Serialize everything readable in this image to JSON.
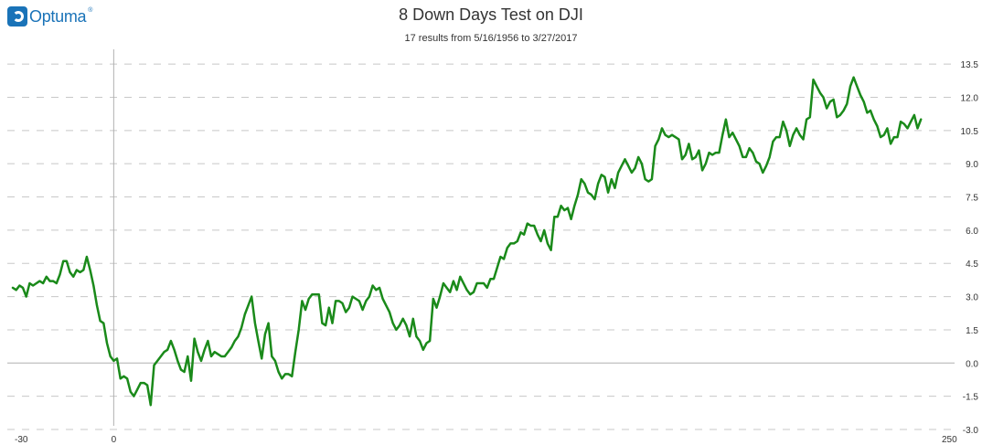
{
  "header": {
    "logo_text": "Optuma",
    "logo_mark": "®"
  },
  "chart_data": {
    "type": "line",
    "title": "8 Down Days Test on DJI",
    "subtitle": "17 results from 5/16/1956 to 3/27/2017",
    "xlabel": "",
    "ylabel": "",
    "xlim": [
      -30,
      250
    ],
    "ylim": [
      -3.0,
      14.0
    ],
    "x_ticks": [
      -30,
      0,
      250
    ],
    "y_ticks": [
      "13.5",
      "12.0",
      "10.5",
      "9.0",
      "7.5",
      "6.0",
      "4.5",
      "3.0",
      "1.5",
      "0.0",
      "-1.5",
      "-3.0"
    ],
    "grid": true,
    "legend": "none",
    "series": [
      {
        "color": "#1a8a1a",
        "points": [
          [
            -30,
            3.4
          ],
          [
            -29,
            3.3
          ],
          [
            -28,
            3.5
          ],
          [
            -27,
            3.4
          ],
          [
            -26,
            3.0
          ],
          [
            -25,
            3.6
          ],
          [
            -24,
            3.5
          ],
          [
            -23,
            3.6
          ],
          [
            -22,
            3.7
          ],
          [
            -21,
            3.6
          ],
          [
            -20,
            3.9
          ],
          [
            -19,
            3.7
          ],
          [
            -18,
            3.7
          ],
          [
            -17,
            3.6
          ],
          [
            -16,
            4.0
          ],
          [
            -15,
            4.6
          ],
          [
            -14,
            4.6
          ],
          [
            -13,
            4.1
          ],
          [
            -12,
            3.9
          ],
          [
            -11,
            4.2
          ],
          [
            -10,
            4.1
          ],
          [
            -9,
            4.2
          ],
          [
            -8,
            4.8
          ],
          [
            -7,
            4.2
          ],
          [
            -6,
            3.5
          ],
          [
            -5,
            2.6
          ],
          [
            -4,
            1.9
          ],
          [
            -3,
            1.8
          ],
          [
            -2,
            0.9
          ],
          [
            -1,
            0.3
          ],
          [
            0,
            0.1
          ],
          [
            1,
            0.2
          ],
          [
            2,
            -0.7
          ],
          [
            3,
            -0.6
          ],
          [
            4,
            -0.7
          ],
          [
            5,
            -1.3
          ],
          [
            6,
            -1.5
          ],
          [
            7,
            -1.2
          ],
          [
            8,
            -0.9
          ],
          [
            9,
            -0.9
          ],
          [
            10,
            -1.0
          ],
          [
            11,
            -1.9
          ],
          [
            12,
            -0.1
          ],
          [
            13,
            0.1
          ],
          [
            14,
            0.3
          ],
          [
            15,
            0.5
          ],
          [
            16,
            0.6
          ],
          [
            17,
            1.0
          ],
          [
            18,
            0.6
          ],
          [
            19,
            0.1
          ],
          [
            20,
            -0.3
          ],
          [
            21,
            -0.4
          ],
          [
            22,
            0.3
          ],
          [
            23,
            -0.8
          ],
          [
            24,
            1.1
          ],
          [
            25,
            0.5
          ],
          [
            26,
            0.1
          ],
          [
            27,
            0.6
          ],
          [
            28,
            1.0
          ],
          [
            29,
            0.3
          ],
          [
            30,
            0.5
          ],
          [
            31,
            0.4
          ],
          [
            32,
            0.3
          ],
          [
            33,
            0.3
          ],
          [
            34,
            0.5
          ],
          [
            35,
            0.7
          ],
          [
            36,
            1.0
          ],
          [
            37,
            1.2
          ],
          [
            38,
            1.6
          ],
          [
            39,
            2.2
          ],
          [
            40,
            2.6
          ],
          [
            41,
            3.0
          ],
          [
            42,
            1.8
          ],
          [
            43,
            1.0
          ],
          [
            44,
            0.2
          ],
          [
            45,
            1.3
          ],
          [
            46,
            1.8
          ],
          [
            47,
            0.3
          ],
          [
            48,
            0.1
          ],
          [
            49,
            -0.4
          ],
          [
            50,
            -0.7
          ],
          [
            51,
            -0.5
          ],
          [
            52,
            -0.5
          ],
          [
            53,
            -0.6
          ],
          [
            54,
            0.5
          ],
          [
            55,
            1.5
          ],
          [
            56,
            2.8
          ],
          [
            57,
            2.4
          ],
          [
            58,
            2.9
          ],
          [
            59,
            3.1
          ],
          [
            60,
            3.1
          ],
          [
            61,
            3.1
          ],
          [
            62,
            1.8
          ],
          [
            63,
            1.7
          ],
          [
            64,
            2.5
          ],
          [
            65,
            1.8
          ],
          [
            66,
            2.8
          ],
          [
            67,
            2.8
          ],
          [
            68,
            2.7
          ],
          [
            69,
            2.3
          ],
          [
            70,
            2.5
          ],
          [
            71,
            3.0
          ],
          [
            72,
            2.9
          ],
          [
            73,
            2.8
          ],
          [
            74,
            2.4
          ],
          [
            75,
            2.8
          ],
          [
            76,
            3.0
          ],
          [
            77,
            3.5
          ],
          [
            78,
            3.3
          ],
          [
            79,
            3.4
          ],
          [
            80,
            2.9
          ],
          [
            81,
            2.6
          ],
          [
            82,
            2.3
          ],
          [
            83,
            1.8
          ],
          [
            84,
            1.5
          ],
          [
            85,
            1.7
          ],
          [
            86,
            2.0
          ],
          [
            87,
            1.7
          ],
          [
            88,
            1.2
          ],
          [
            89,
            2.0
          ],
          [
            90,
            1.2
          ],
          [
            91,
            1.0
          ],
          [
            92,
            0.6
          ],
          [
            93,
            0.9
          ],
          [
            94,
            1.0
          ],
          [
            95,
            2.9
          ],
          [
            96,
            2.5
          ],
          [
            97,
            3.0
          ],
          [
            98,
            3.6
          ],
          [
            99,
            3.4
          ],
          [
            100,
            3.2
          ],
          [
            101,
            3.7
          ],
          [
            102,
            3.3
          ],
          [
            103,
            3.9
          ],
          [
            104,
            3.6
          ],
          [
            105,
            3.3
          ],
          [
            106,
            3.1
          ],
          [
            107,
            3.2
          ],
          [
            108,
            3.6
          ],
          [
            109,
            3.6
          ],
          [
            110,
            3.6
          ],
          [
            111,
            3.4
          ],
          [
            112,
            3.8
          ],
          [
            113,
            3.8
          ],
          [
            114,
            4.3
          ],
          [
            115,
            4.8
          ],
          [
            116,
            4.7
          ],
          [
            117,
            5.2
          ],
          [
            118,
            5.4
          ],
          [
            119,
            5.4
          ],
          [
            120,
            5.5
          ],
          [
            121,
            5.9
          ],
          [
            122,
            5.8
          ],
          [
            123,
            6.3
          ],
          [
            124,
            6.2
          ],
          [
            125,
            6.2
          ],
          [
            126,
            5.8
          ],
          [
            127,
            5.5
          ],
          [
            128,
            6.0
          ],
          [
            129,
            5.4
          ],
          [
            130,
            5.1
          ],
          [
            131,
            6.6
          ],
          [
            132,
            6.6
          ],
          [
            133,
            7.1
          ],
          [
            134,
            6.9
          ],
          [
            135,
            7.0
          ],
          [
            136,
            6.5
          ],
          [
            137,
            7.1
          ],
          [
            138,
            7.6
          ],
          [
            139,
            8.3
          ],
          [
            140,
            8.1
          ],
          [
            141,
            7.7
          ],
          [
            142,
            7.6
          ],
          [
            143,
            7.4
          ],
          [
            144,
            8.1
          ],
          [
            145,
            8.5
          ],
          [
            146,
            8.4
          ],
          [
            147,
            7.7
          ],
          [
            148,
            8.3
          ],
          [
            149,
            7.9
          ],
          [
            150,
            8.6
          ],
          [
            151,
            8.9
          ],
          [
            152,
            9.2
          ],
          [
            153,
            8.9
          ],
          [
            154,
            8.6
          ],
          [
            155,
            8.8
          ],
          [
            156,
            9.3
          ],
          [
            157,
            9.0
          ],
          [
            158,
            8.3
          ],
          [
            159,
            8.2
          ],
          [
            160,
            8.3
          ],
          [
            161,
            9.8
          ],
          [
            162,
            10.1
          ],
          [
            163,
            10.6
          ],
          [
            164,
            10.3
          ],
          [
            165,
            10.2
          ],
          [
            166,
            10.3
          ],
          [
            167,
            10.2
          ],
          [
            168,
            10.1
          ],
          [
            169,
            9.2
          ],
          [
            170,
            9.4
          ],
          [
            171,
            9.9
          ],
          [
            172,
            9.2
          ],
          [
            173,
            9.3
          ],
          [
            174,
            9.6
          ],
          [
            175,
            8.7
          ],
          [
            176,
            9.0
          ],
          [
            177,
            9.5
          ],
          [
            178,
            9.4
          ],
          [
            179,
            9.5
          ],
          [
            180,
            9.5
          ],
          [
            181,
            10.3
          ],
          [
            182,
            11.0
          ],
          [
            183,
            10.2
          ],
          [
            184,
            10.4
          ],
          [
            185,
            10.1
          ],
          [
            186,
            9.8
          ],
          [
            187,
            9.3
          ],
          [
            188,
            9.3
          ],
          [
            189,
            9.7
          ],
          [
            190,
            9.5
          ],
          [
            191,
            9.1
          ],
          [
            192,
            9.0
          ],
          [
            193,
            8.6
          ],
          [
            194,
            8.9
          ],
          [
            195,
            9.3
          ],
          [
            196,
            10.0
          ],
          [
            197,
            10.2
          ],
          [
            198,
            10.2
          ],
          [
            199,
            10.9
          ],
          [
            200,
            10.5
          ],
          [
            201,
            9.8
          ],
          [
            202,
            10.3
          ],
          [
            203,
            10.6
          ],
          [
            204,
            10.3
          ],
          [
            205,
            10.1
          ],
          [
            206,
            11.0
          ],
          [
            207,
            11.1
          ],
          [
            208,
            12.8
          ],
          [
            209,
            12.5
          ],
          [
            210,
            12.2
          ],
          [
            211,
            12.0
          ],
          [
            212,
            11.5
          ],
          [
            213,
            11.8
          ],
          [
            214,
            11.9
          ],
          [
            215,
            11.1
          ],
          [
            216,
            11.2
          ],
          [
            217,
            11.4
          ],
          [
            218,
            11.7
          ],
          [
            219,
            12.5
          ],
          [
            220,
            12.9
          ],
          [
            221,
            12.5
          ],
          [
            222,
            12.1
          ],
          [
            223,
            11.8
          ],
          [
            224,
            11.3
          ],
          [
            225,
            11.4
          ],
          [
            226,
            11.0
          ],
          [
            227,
            10.7
          ],
          [
            228,
            10.2
          ],
          [
            229,
            10.3
          ],
          [
            230,
            10.6
          ],
          [
            231,
            9.9
          ],
          [
            232,
            10.2
          ],
          [
            233,
            10.2
          ],
          [
            234,
            10.9
          ],
          [
            235,
            10.8
          ],
          [
            236,
            10.6
          ],
          [
            237,
            10.9
          ],
          [
            238,
            11.2
          ],
          [
            239,
            10.6
          ],
          [
            240,
            11.0
          ]
        ]
      }
    ]
  }
}
